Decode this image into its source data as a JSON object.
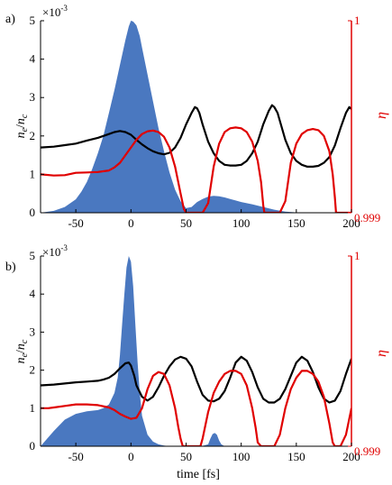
{
  "chart_data": [
    {
      "type": "area",
      "panel_label": "a)",
      "left_axis": {
        "ylabel_main": "n",
        "ylabel_main_sub": "e",
        "ylabel_sep": "/",
        "ylabel_den": "n",
        "ylabel_den_sub": "c",
        "ylim": [
          0,
          5
        ],
        "ticks": [
          "0",
          "1",
          "2",
          "3",
          "4",
          "5"
        ],
        "multiplier_base": "×10",
        "multiplier_exp": "-3"
      },
      "right_axis": {
        "ylabel": "η",
        "ylim": [
          0.999,
          1
        ],
        "ticks": [
          "0.999",
          "1"
        ]
      },
      "x_axis": {
        "xlim": [
          -82,
          200
        ],
        "ticks": [
          "-50",
          "0",
          "50",
          "100",
          "150",
          "200"
        ]
      },
      "density_fill": {
        "color": "#4a78c0",
        "x": [
          -82,
          -70,
          -60,
          -50,
          -45,
          -40,
          -35,
          -30,
          -25,
          -20,
          -15,
          -10,
          -5,
          -2,
          0,
          2,
          5,
          8,
          10,
          15,
          20,
          25,
          30,
          35,
          40,
          45,
          50,
          55,
          60,
          65,
          70,
          75,
          80,
          85,
          90,
          95,
          100,
          110,
          120,
          130,
          140,
          150,
          160,
          180,
          200
        ],
        "y": [
          0,
          0.05,
          0.15,
          0.35,
          0.55,
          0.8,
          1.15,
          1.55,
          2.0,
          2.6,
          3.2,
          3.85,
          4.5,
          4.85,
          5.0,
          4.98,
          4.88,
          4.6,
          4.3,
          3.6,
          2.9,
          2.2,
          1.6,
          1.05,
          0.6,
          0.3,
          0.12,
          0.15,
          0.28,
          0.36,
          0.42,
          0.44,
          0.43,
          0.4,
          0.36,
          0.32,
          0.28,
          0.22,
          0.15,
          0.08,
          0.03,
          0.01,
          0,
          0,
          0
        ]
      },
      "black_curve": {
        "color": "#000000",
        "x": [
          -82,
          -70,
          -60,
          -50,
          -40,
          -30,
          -20,
          -15,
          -10,
          -5,
          0,
          5,
          10,
          15,
          20,
          25,
          30,
          35,
          40,
          45,
          50,
          55,
          58,
          60,
          62,
          65,
          70,
          75,
          80,
          85,
          90,
          95,
          100,
          105,
          110,
          115,
          120,
          125,
          128,
          130,
          133,
          136,
          140,
          145,
          150,
          155,
          160,
          165,
          170,
          175,
          180,
          185,
          190,
          195,
          198,
          200
        ],
        "y": [
          1.7,
          1.72,
          1.76,
          1.8,
          1.88,
          1.95,
          2.05,
          2.1,
          2.13,
          2.1,
          2.03,
          1.9,
          1.78,
          1.68,
          1.6,
          1.55,
          1.52,
          1.56,
          1.7,
          1.95,
          2.3,
          2.6,
          2.75,
          2.72,
          2.6,
          2.3,
          1.85,
          1.55,
          1.35,
          1.25,
          1.23,
          1.23,
          1.25,
          1.35,
          1.55,
          1.85,
          2.3,
          2.65,
          2.8,
          2.75,
          2.6,
          2.3,
          1.9,
          1.55,
          1.35,
          1.25,
          1.2,
          1.2,
          1.22,
          1.3,
          1.45,
          1.75,
          2.2,
          2.6,
          2.75,
          2.7
        ]
      },
      "red_curve": {
        "color": "#e00000",
        "x": [
          -82,
          -70,
          -60,
          -50,
          -40,
          -30,
          -20,
          -15,
          -10,
          -5,
          0,
          5,
          10,
          15,
          20,
          25,
          30,
          35,
          40,
          45,
          48,
          50,
          51,
          53,
          55,
          57,
          60,
          65,
          70,
          75,
          80,
          85,
          90,
          95,
          100,
          105,
          110,
          115,
          118,
          120,
          121,
          123,
          125,
          127,
          130,
          135,
          140,
          145,
          150,
          155,
          160,
          165,
          170,
          175,
          180,
          183,
          185,
          186,
          188,
          190,
          200
        ],
        "y": [
          1.0,
          0.97,
          0.98,
          1.04,
          1.05,
          1.06,
          1.1,
          1.18,
          1.3,
          1.5,
          1.7,
          1.9,
          2.05,
          2.12,
          2.14,
          2.1,
          1.98,
          1.7,
          1.2,
          0.5,
          0.1,
          0,
          0,
          0,
          0,
          0,
          0,
          0,
          0.25,
          1.2,
          1.8,
          2.1,
          2.2,
          2.22,
          2.2,
          2.1,
          1.85,
          1.35,
          0.8,
          0.2,
          0,
          0,
          0,
          0,
          0,
          0,
          0.3,
          1.3,
          1.8,
          2.05,
          2.15,
          2.18,
          2.15,
          2.0,
          1.6,
          1.0,
          0.4,
          0,
          0,
          0,
          0
        ]
      }
    },
    {
      "type": "area",
      "panel_label": "b)",
      "left_axis": {
        "ylabel_main": "n",
        "ylabel_main_sub": "e",
        "ylabel_sep": "/",
        "ylabel_den": "n",
        "ylabel_den_sub": "c",
        "ylim": [
          0,
          5
        ],
        "ticks": [
          "0",
          "1",
          "2",
          "3",
          "4",
          "5"
        ],
        "multiplier_base": "×10",
        "multiplier_exp": "-3"
      },
      "right_axis": {
        "ylabel": "η",
        "ylim": [
          0.999,
          1
        ],
        "ticks": [
          "0.999",
          "1"
        ]
      },
      "x_axis": {
        "xlim": [
          -82,
          200
        ],
        "ticks": [
          "-50",
          "0",
          "50",
          "100",
          "150",
          "200"
        ],
        "xlabel": "time [fs]"
      },
      "density_fill": {
        "color": "#4a78c0",
        "x": [
          -82,
          -70,
          -60,
          -50,
          -40,
          -30,
          -25,
          -20,
          -15,
          -12,
          -10,
          -8,
          -6,
          -4,
          -2,
          0,
          2,
          4,
          6,
          8,
          10,
          15,
          20,
          25,
          30,
          35,
          40,
          60,
          65,
          70,
          72,
          74,
          76,
          78,
          80,
          82,
          85,
          90,
          120,
          160,
          200
        ],
        "y": [
          0,
          0.4,
          0.7,
          0.85,
          0.92,
          0.95,
          1.0,
          1.1,
          1.4,
          1.8,
          2.4,
          3.2,
          4.0,
          4.7,
          5.0,
          4.85,
          4.2,
          3.2,
          2.2,
          1.4,
          0.8,
          0.3,
          0.12,
          0.05,
          0.02,
          0,
          0,
          0,
          0.01,
          0.05,
          0.2,
          0.32,
          0.35,
          0.3,
          0.15,
          0.05,
          0,
          0,
          0,
          0,
          0
        ]
      },
      "black_curve": {
        "color": "#000000",
        "x": [
          -82,
          -70,
          -60,
          -50,
          -40,
          -30,
          -25,
          -20,
          -15,
          -10,
          -5,
          -2,
          0,
          3,
          5,
          10,
          15,
          20,
          25,
          30,
          35,
          40,
          45,
          50,
          55,
          60,
          65,
          70,
          75,
          80,
          85,
          90,
          95,
          100,
          105,
          110,
          115,
          120,
          125,
          130,
          135,
          140,
          145,
          150,
          155,
          160,
          165,
          170,
          175,
          180,
          185,
          190,
          195,
          200
        ],
        "y": [
          1.6,
          1.62,
          1.65,
          1.68,
          1.7,
          1.72,
          1.75,
          1.8,
          1.9,
          2.05,
          2.18,
          2.2,
          2.12,
          1.85,
          1.6,
          1.3,
          1.2,
          1.3,
          1.55,
          1.85,
          2.1,
          2.28,
          2.35,
          2.3,
          2.1,
          1.7,
          1.35,
          1.2,
          1.18,
          1.25,
          1.45,
          1.8,
          2.2,
          2.35,
          2.25,
          1.95,
          1.55,
          1.25,
          1.15,
          1.15,
          1.25,
          1.5,
          1.85,
          2.2,
          2.35,
          2.25,
          1.95,
          1.55,
          1.25,
          1.15,
          1.2,
          1.45,
          1.9,
          2.3
        ]
      },
      "red_curve": {
        "color": "#e00000",
        "x": [
          -82,
          -75,
          -70,
          -60,
          -50,
          -40,
          -30,
          -20,
          -15,
          -10,
          -5,
          0,
          5,
          10,
          15,
          20,
          25,
          30,
          35,
          40,
          43,
          45,
          47,
          50,
          55,
          60,
          63,
          65,
          70,
          75,
          80,
          85,
          90,
          95,
          100,
          105,
          110,
          113,
          115,
          118,
          120,
          125,
          130,
          135,
          140,
          145,
          150,
          155,
          160,
          165,
          170,
          175,
          180,
          183,
          185,
          188,
          190,
          195,
          200
        ],
        "y": [
          1.0,
          1.0,
          1.02,
          1.06,
          1.1,
          1.1,
          1.08,
          1.02,
          0.95,
          0.85,
          0.78,
          0.72,
          0.75,
          1.0,
          1.5,
          1.85,
          1.95,
          1.9,
          1.6,
          1.0,
          0.5,
          0.2,
          0,
          0,
          0,
          0,
          0,
          0.2,
          0.9,
          1.4,
          1.7,
          1.9,
          1.98,
          1.98,
          1.9,
          1.6,
          1.0,
          0.5,
          0.1,
          0,
          0,
          0,
          0,
          0.3,
          1.0,
          1.5,
          1.8,
          1.98,
          1.98,
          1.9,
          1.7,
          1.3,
          0.6,
          0.1,
          0,
          0,
          0,
          0.3,
          1.0
        ]
      }
    }
  ]
}
